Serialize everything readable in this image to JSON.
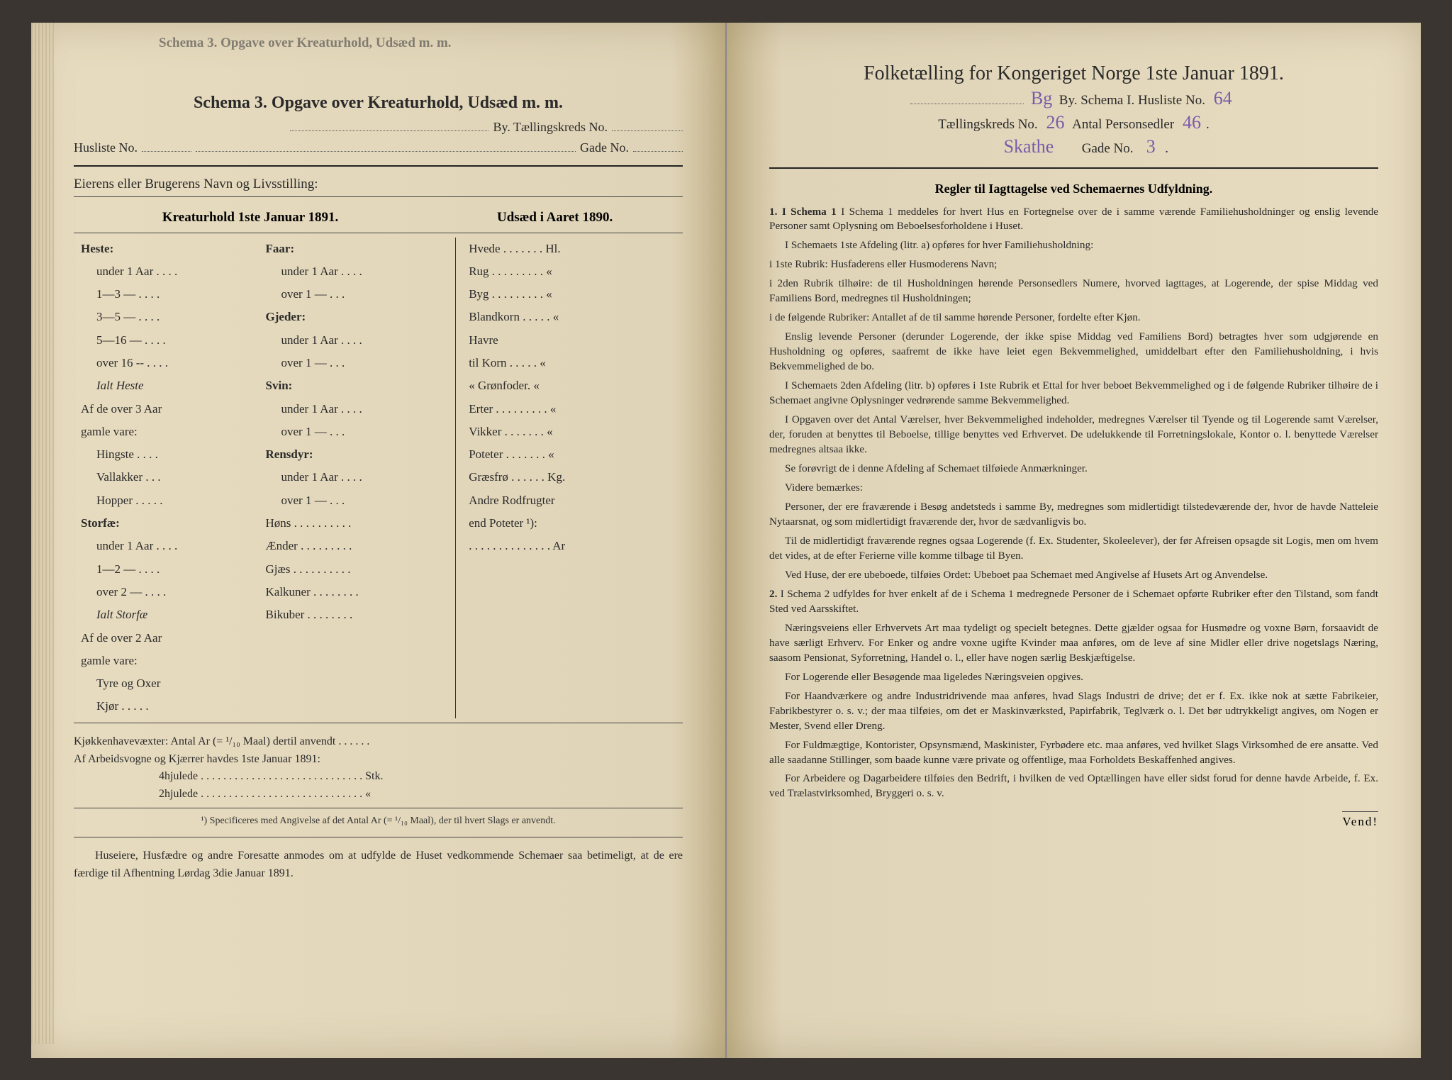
{
  "peek_title": "Schema 3.   Opgave over Kreaturhold, Udsæd m. m.",
  "left": {
    "title": "Schema 3.   Opgave over Kreaturhold, Udsæd m. m.",
    "by_label": "By.  Tællingskreds No.",
    "husliste_label": "Husliste No.",
    "gade_label": "Gade No.",
    "owner_label": "Eierens eller Brugerens Navn og Livsstilling:",
    "col1_header": "Kreaturhold 1ste Januar 1891.",
    "col2_header": "Udsæd i Aaret 1890.",
    "animals_c1": [
      {
        "t": "Heste:",
        "b": true
      },
      {
        "t": "under 1 Aar . . . .",
        "i": true
      },
      {
        "t": "1—3   —  . . . .",
        "i": true
      },
      {
        "t": "3—5   —  . . . .",
        "i": true
      },
      {
        "t": "5—16 —  . . . .",
        "i": true
      },
      {
        "t": "over 16 --   . . . .",
        "i": true
      },
      {
        "t": "Ialt Heste",
        "it": true,
        "i": true
      },
      {
        "t": "Af de over 3 Aar"
      },
      {
        "t": "gamle vare:"
      },
      {
        "t": "Hingste . . . .",
        "i": true
      },
      {
        "t": "Vallakker . . .",
        "i": true
      },
      {
        "t": "Hopper . . . . .",
        "i": true
      },
      {
        "t": "Storfæ:",
        "b": true
      },
      {
        "t": "under 1 Aar . . . .",
        "i": true
      },
      {
        "t": "1—2   —  . . . .",
        "i": true
      },
      {
        "t": "over 2   —  . . . .",
        "i": true
      },
      {
        "t": "Ialt Storfæ",
        "it": true,
        "i": true
      },
      {
        "t": "Af de over 2 Aar"
      },
      {
        "t": "gamle vare:"
      },
      {
        "t": "Tyre og Oxer",
        "i": true
      },
      {
        "t": "Kjør . . . . .",
        "i": true
      }
    ],
    "animals_c2": [
      {
        "t": "Faar:",
        "b": true
      },
      {
        "t": "under 1 Aar . . . .",
        "i": true
      },
      {
        "t": "over 1   —  . . .",
        "i": true
      },
      {
        "t": "Gjeder:",
        "b": true
      },
      {
        "t": "under 1 Aar . . . .",
        "i": true
      },
      {
        "t": "over 1   —  . . .",
        "i": true
      },
      {
        "t": "Svin:",
        "b": true
      },
      {
        "t": "under 1 Aar . . . .",
        "i": true
      },
      {
        "t": "over 1   —  . . .",
        "i": true
      },
      {
        "t": "Rensdyr:",
        "b": true
      },
      {
        "t": "under 1 Aar . . . .",
        "i": true
      },
      {
        "t": "over 1   —  . . .",
        "i": true
      },
      {
        "t": " "
      },
      {
        "t": "Høns . . . . . . . . . ."
      },
      {
        "t": "Ænder . . . . . . . . ."
      },
      {
        "t": "Gjæs . . . . . . . . . ."
      },
      {
        "t": "Kalkuner . . . . . . . ."
      },
      {
        "t": " "
      },
      {
        "t": "Bikuber . . . . . . . ."
      }
    ],
    "crops": [
      "Hvede . . . . . . . Hl.",
      "Rug . . . . . . . . .  «",
      "Byg . . . . . . . . .  «",
      "Blandkorn . . . . .  «",
      "Havre",
      "    til Korn . . . . .  «",
      "    « Grønfoder.  «",
      "Erter . . . . . . . . .  «",
      "Vikker . . . . . . .  «",
      "Poteter . . . . . . .  «",
      "Græsfrø . . . . . . Kg.",
      "Andre Rodfrugter",
      "  end Poteter ¹):",
      ". . . . . . . . . . . . . . Ar"
    ],
    "kjokken": "Kjøkkenhavevæxter:   Antal Ar (= ¹/₁₀ Maal) dertil anvendt . . . . . .",
    "arbeids": "Af Arbeidsvogne og Kjærrer havdes 1ste Januar 1891:",
    "fourwheel": "4hjulede . . . . . . . . . . . . . . . . . . . . . . . . . . . . .  Stk.",
    "twowheel": "2hjulede . . . . . . . . . . . . . . . . . . . . . . . . . . . . .   «",
    "footnote": "¹) Specificeres med Angivelse af det Antal Ar (= ¹/₁₀ Maal), der til hvert Slags er anvendt.",
    "closing": "Huseiere, Husfædre og andre Foresatte anmodes om at udfylde de Huset vedkommende Schemaer saa betimeligt, at de ere færdige til Afhentning Lørdag 3die Januar 1891."
  },
  "right": {
    "title": "Folketælling for Kongeriget Norge 1ste Januar 1891.",
    "by_val": "Bg",
    "by_lbl": "By.   Schema I.   Husliste No.",
    "husliste_val": "64",
    "kreds_lbl": "Tællingskreds No.",
    "kreds_val": "26",
    "antal_lbl": "Antal Personsedler",
    "antal_val": "46",
    "street_val": "Skathe",
    "gade_lbl": "Gade No.",
    "gade_val": "3",
    "rules_title": "Regler til Iagttagelse ved Schemaernes Udfyldning.",
    "p1": "I Schema 1 meddeles for hvert Hus en Fortegnelse over de i samme værende Familiehusholdninger og enslig levende Personer samt Oplysning om Beboelsesforholdene i Huset.",
    "p1a": "I Schemaets 1ste Afdeling (litr. a) opføres for hver Familiehusholdning:",
    "p1b": "i 1ste Rubrik: Husfaderens eller Husmoderens Navn;",
    "p1c": "i 2den Rubrik tilhøire: de til Husholdningen hørende Personsedlers Numere, hvorved iagttages, at Logerende, der spise Middag ved Familiens Bord, medregnes til Husholdningen;",
    "p1d": "i de følgende Rubriker: Antallet af de til samme hørende Personer, fordelte efter Kjøn.",
    "p2": "Enslig levende Personer (derunder Logerende, der ikke spise Middag ved Familiens Bord) betragtes hver som udgjørende en Husholdning og opføres, saafremt de ikke have leiet egen Bekvemmelighed, umiddelbart efter den Familiehusholdning, i hvis Bekvemmelighed de bo.",
    "p3": "I Schemaets 2den Afdeling (litr. b) opføres i 1ste Rubrik et Ettal for hver beboet Bekvemmelighed og i de følgende Rubriker tilhøire de i Schemaet angivne Oplysninger vedrørende samme Bekvemmelighed.",
    "p4": "I Opgaven over det Antal Værelser, hver Bekvemmelighed indeholder, medregnes Værelser til Tyende og til Logerende samt Værelser, der, foruden at benyttes til Beboelse, tillige benyttes ved Erhvervet. De udelukkende til Forretningslokale, Kontor o. l. benyttede Værelser medregnes altsaa ikke.",
    "p5": "Se forøvrigt de i denne Afdeling af Schemaet tilføiede Anmærkninger.",
    "p6": "Videre bemærkes:",
    "p7": "Personer, der ere fraværende i Besøg andetsteds i samme By, medregnes som midlertidigt tilstedeværende der, hvor de havde Natteleie Nytaarsnat, og som midlertidigt fraværende der, hvor de sædvanligvis bo.",
    "p8": "Til de midlertidigt fraværende regnes ogsaa Logerende (f. Ex. Studenter, Skoleelever), der før Afreisen opsagde sit Logis, men om hvem det vides, at de efter Ferierne ville komme tilbage til Byen.",
    "p9": "Ved Huse, der ere ubeboede, tilføies Ordet: Ubeboet paa Schemaet med Angivelse af Husets Art og Anvendelse.",
    "p10": "I Schema 2 udfyldes for hver enkelt af de i Schema 1 medregnede Personer de i Schemaet opførte Rubriker efter den Tilstand, som fandt Sted ved Aarsskiftet.",
    "p11": "Næringsveiens eller Erhvervets Art maa tydeligt og specielt betegnes. Dette gjælder ogsaa for Husmødre og voxne Børn, forsaavidt de have særligt Erhverv. For Enker og andre voxne ugifte Kvinder maa anføres, om de leve af sine Midler eller drive nogetslags Næring, saasom Pensionat, Syforretning, Handel o. l., eller have nogen særlig Beskjæftigelse.",
    "p12": "For Logerende eller Besøgende maa ligeledes Næringsveien opgives.",
    "p13": "For Haandværkere og andre Industridrivende maa anføres, hvad Slags Industri de drive; det er f. Ex. ikke nok at sætte Fabrikeier, Fabrikbestyrer o. s. v.; der maa tilføies, om det er Maskinværksted, Papirfabrik, Teglværk o. l. Det bør udtrykkeligt angives, om Nogen er Mester, Svend eller Dreng.",
    "p14": "For Fuldmægtige, Kontorister, Opsynsmænd, Maskinister, Fyrbødere etc. maa anføres, ved hvilket Slags Virksomhed de ere ansatte. Ved alle saadanne Stillinger, som baade kunne være private og offentlige, maa Forholdets Beskaffenhed angives.",
    "p15": "For Arbeidere og Dagarbeidere tilføies den Bedrift, i hvilken de ved Optællingen have eller sidst forud for denne havde Arbeide, f. Ex. ved Trælastvirksomhed, Bryggeri o. s. v.",
    "vend": "Vend!"
  },
  "colors": {
    "paper": "#e8dcc0",
    "ink": "#2a2a2a",
    "handwrite": "#7a5ba8",
    "background": "#3a3530"
  }
}
